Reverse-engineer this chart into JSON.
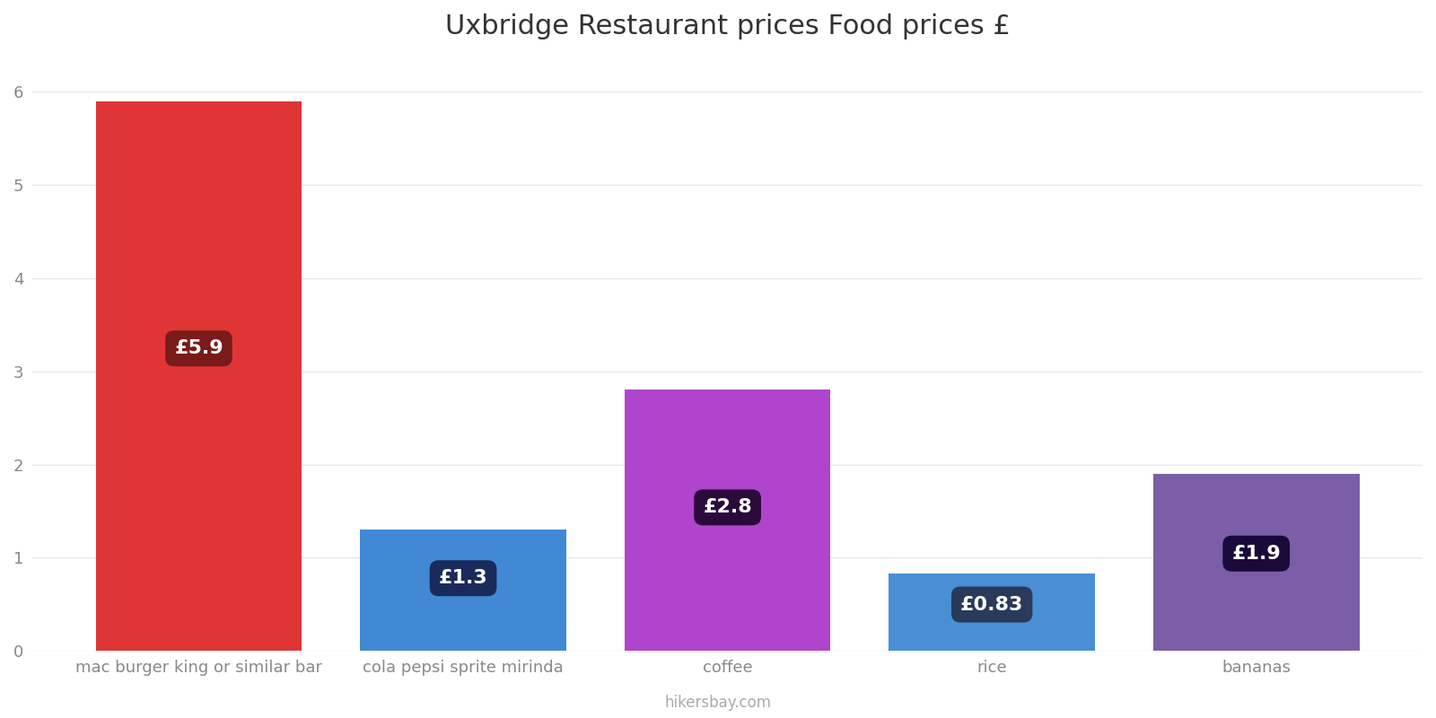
{
  "title": "Uxbridge Restaurant prices Food prices £",
  "categories": [
    "mac burger king or similar bar",
    "cola pepsi sprite mirinda",
    "coffee",
    "rice",
    "bananas"
  ],
  "values": [
    5.9,
    1.3,
    2.8,
    0.83,
    1.9
  ],
  "bar_colors": [
    "#e03535",
    "#4189d4",
    "#b044cc",
    "#4a8ed4",
    "#7b5ea7"
  ],
  "label_texts": [
    "£5.9",
    "£1.3",
    "£2.8",
    "£0.83",
    "£1.9"
  ],
  "label_bg_colors": [
    "#7a1a1a",
    "#1a2a5a",
    "#2a0a3a",
    "#2a3a5a",
    "#1a0a3a"
  ],
  "ylim": [
    0,
    6.35
  ],
  "yticks": [
    0,
    1,
    2,
    3,
    4,
    5,
    6
  ],
  "title_fontsize": 22,
  "label_fontsize": 16,
  "watermark": "hikersbay.com",
  "background_color": "#ffffff",
  "grid_color": "#e8e8f0",
  "bar_width": 0.78
}
